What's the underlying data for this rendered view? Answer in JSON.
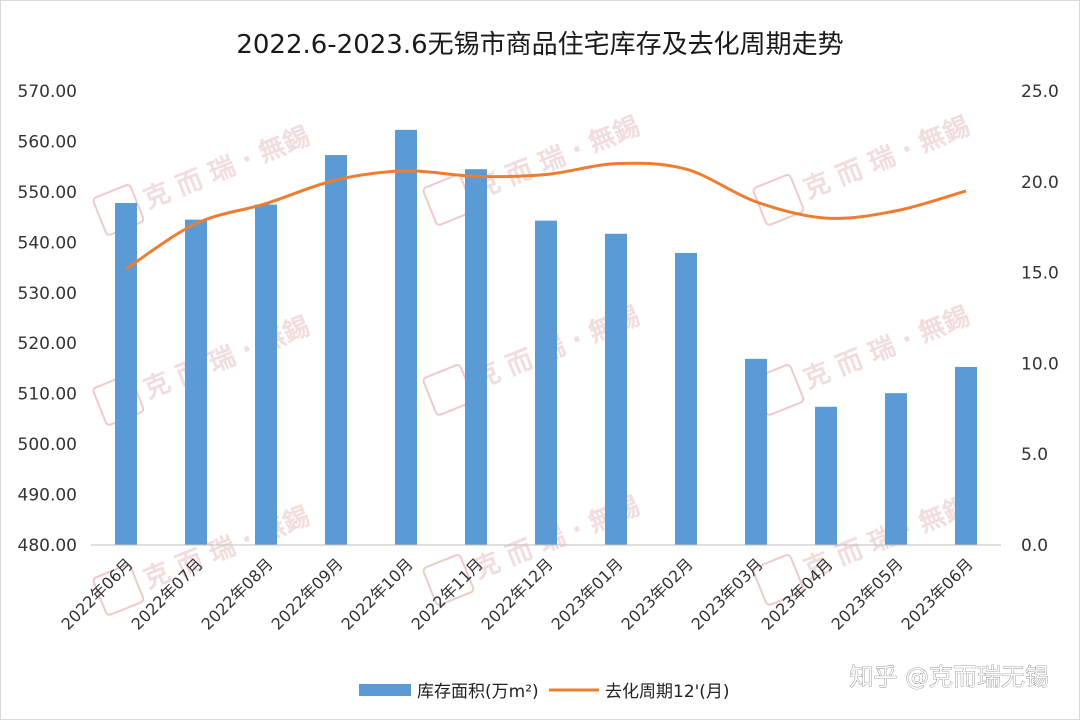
{
  "chart_data": {
    "type": "bar+line",
    "title": "2022.6-2023.6无锡市商品住宅库存及去化周期走势",
    "categories": [
      "2022年06月",
      "2022年07月",
      "2022年08月",
      "2022年09月",
      "2022年10月",
      "2022年11月",
      "2022年12月",
      "2023年01月",
      "2023年02月",
      "2023年03月",
      "2023年04月",
      "2023年05月",
      "2023年06月"
    ],
    "series": [
      {
        "name": "库存面积(万m²)",
        "type": "bar",
        "axis": "left",
        "color": "#5b9bd5",
        "values": [
          547.8,
          544.5,
          547.5,
          557.3,
          562.3,
          554.5,
          544.3,
          541.7,
          537.9,
          516.9,
          507.4,
          510.1,
          515.3
        ]
      },
      {
        "name": "去化周期12'(月)",
        "type": "line",
        "axis": "right",
        "color": "#ed7d31",
        "values": [
          15.2,
          17.7,
          18.8,
          20.1,
          20.6,
          20.3,
          20.4,
          21.0,
          20.7,
          18.9,
          18.0,
          18.4,
          19.5
        ]
      }
    ],
    "ylim_left": [
      480,
      570
    ],
    "yticks_left": [
      "480.00",
      "490.00",
      "500.00",
      "510.00",
      "520.00",
      "530.00",
      "540.00",
      "550.00",
      "560.00",
      "570.00"
    ],
    "ylim_right": [
      0,
      25
    ],
    "yticks_right": [
      "0.0",
      "5.0",
      "10.0",
      "15.0",
      "20.0",
      "25.0"
    ],
    "grid": false,
    "legend_position": "bottom"
  },
  "watermark": {
    "text": "克 而 瑞 · 無錫",
    "stamp": "克而瑞"
  },
  "source": "知乎 @克而瑞无锡"
}
